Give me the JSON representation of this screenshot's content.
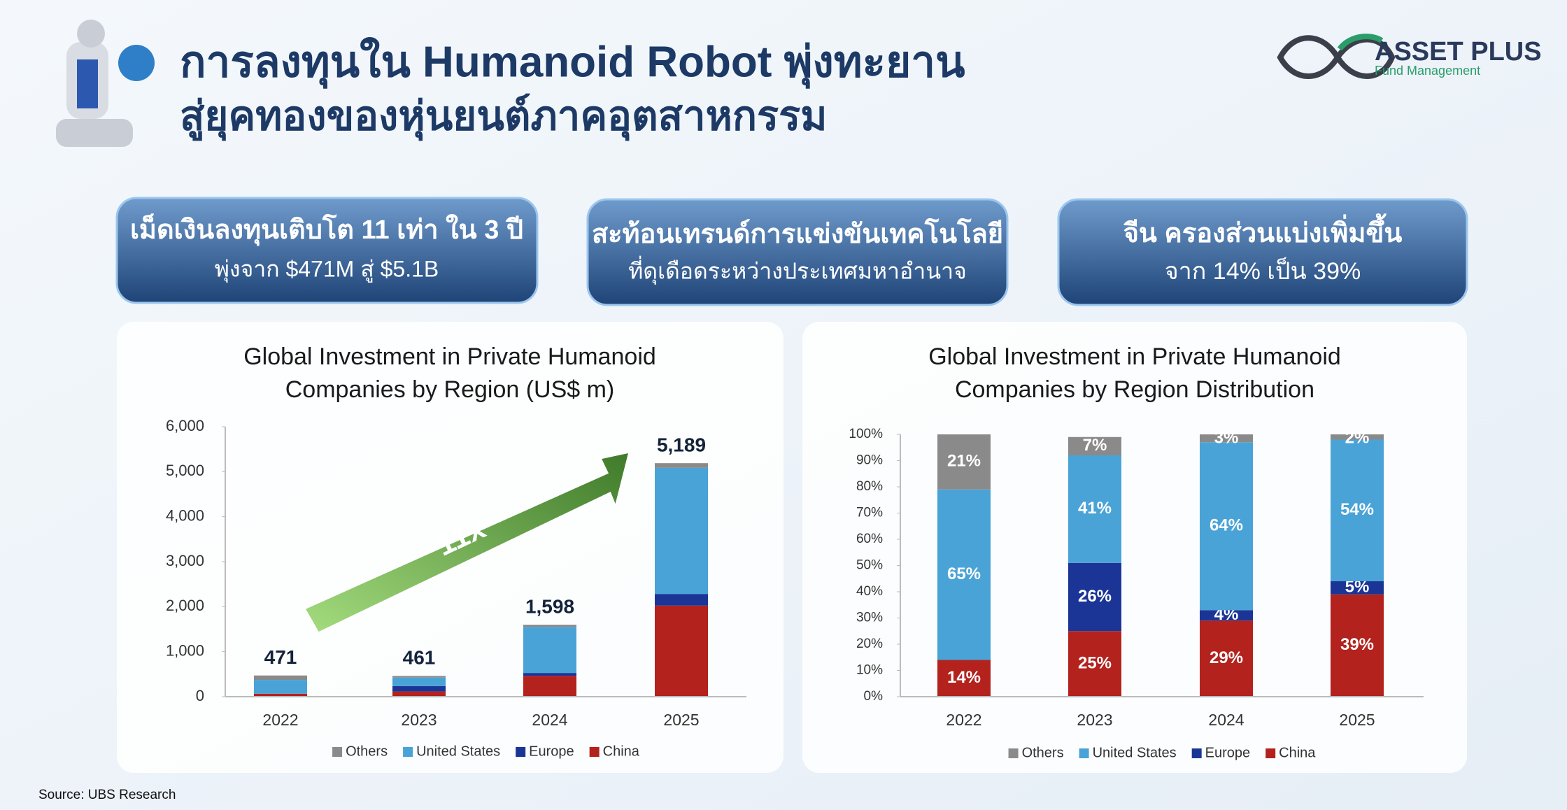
{
  "header": {
    "title_line1": "การลงทุนใน Humanoid Robot พุ่งทะยาน",
    "title_line2": "สู่ยุคทองของหุ่นยนต์ภาคอุตสาหกรรม"
  },
  "logo": {
    "name": "ASSET PLUS",
    "tagline": "Fund Management"
  },
  "callouts": [
    {
      "headline": "เม็ดเงินลงทุนเติบโต 11 เท่า ใน 3 ปี",
      "detail": "พุ่งจาก $471M สู่ $5.1B"
    },
    {
      "headline": "สะท้อนเทรนด์การแข่งขันเทคโนโลยี",
      "detail": "ที่ดุเดือดระหว่างประเทศมหาอำนาจ"
    },
    {
      "headline": "จีน ครองส่วนแบ่งเพิ่มขึ้น",
      "detail": "จาก 14% เป็น 39%"
    }
  ],
  "chart_data": [
    {
      "type": "bar",
      "stacked": true,
      "title": [
        "Global Investment in Private Humanoid",
        "Companies by Region (US$ m)"
      ],
      "categories": [
        "2022",
        "2023",
        "2024",
        "2025"
      ],
      "series": [
        {
          "name": "Others",
          "color": "#8a8a8a",
          "values": [
            99,
            37,
            48,
            104
          ]
        },
        {
          "name": "United States",
          "color": "#4aa3d6",
          "values": [
            306,
            189,
            1023,
            2802
          ]
        },
        {
          "name": "Europe",
          "color": "#1b3596",
          "values": [
            0,
            120,
            64,
            259
          ]
        },
        {
          "name": "China",
          "color": "#b3221d",
          "values": [
            66,
            115,
            463,
            2024
          ]
        }
      ],
      "totals": {
        "values": [
          471,
          461,
          1598,
          5189
        ],
        "value_labels": [
          "471",
          "461",
          "1,598",
          "5,189"
        ]
      },
      "annotation": "11x",
      "ylim": [
        0,
        6000
      ],
      "yticks": [
        0,
        {
          "value": 1000,
          "label": "1,000"
        },
        {
          "value": 2000,
          "label": "2,000"
        },
        {
          "value": 3000,
          "label": "3,000"
        },
        {
          "value": 4000,
          "label": "4,000"
        },
        {
          "value": 5000,
          "label": "5,000"
        },
        {
          "value": 6000,
          "label": "6,000"
        }
      ]
    },
    {
      "type": "bar",
      "stacked": true,
      "title": [
        "Global Investment in Private Humanoid",
        "Companies by Region Distribution"
      ],
      "categories": [
        "2022",
        "2023",
        "2024",
        "2025"
      ],
      "series": [
        {
          "name": "Others",
          "color": "#8a8a8a",
          "values": [
            21,
            7,
            3,
            2
          ],
          "value_labels": [
            "21%",
            "7%",
            "3%",
            "2%"
          ]
        },
        {
          "name": "United States",
          "color": "#4aa3d6",
          "values": [
            65,
            41,
            64,
            54
          ],
          "value_labels": [
            "65%",
            "41%",
            "64%",
            "54%"
          ]
        },
        {
          "name": "Europe",
          "color": "#1b3596",
          "values": [
            0,
            26,
            4,
            5
          ],
          "value_labels": [
            null,
            "26%",
            "4%",
            "5%"
          ]
        },
        {
          "name": "China",
          "color": "#b3221d",
          "values": [
            14,
            25,
            29,
            39
          ],
          "value_labels": [
            "14%",
            "25%",
            "29%",
            "39%"
          ]
        }
      ],
      "ylim": [
        0,
        100
      ],
      "yticks": [
        {
          "value": 0,
          "label": "0%"
        },
        {
          "value": 10,
          "label": "10%"
        },
        {
          "value": 20,
          "label": "20%"
        },
        {
          "value": 30,
          "label": "30%"
        },
        {
          "value": 40,
          "label": "40%"
        },
        {
          "value": 50,
          "label": "50%"
        },
        {
          "value": 60,
          "label": "60%"
        },
        {
          "value": 70,
          "label": "70%"
        },
        {
          "value": 80,
          "label": "80%"
        },
        {
          "value": 90,
          "label": "90%"
        },
        {
          "value": 100,
          "label": "100%"
        }
      ]
    }
  ],
  "source": "Source: UBS Research"
}
